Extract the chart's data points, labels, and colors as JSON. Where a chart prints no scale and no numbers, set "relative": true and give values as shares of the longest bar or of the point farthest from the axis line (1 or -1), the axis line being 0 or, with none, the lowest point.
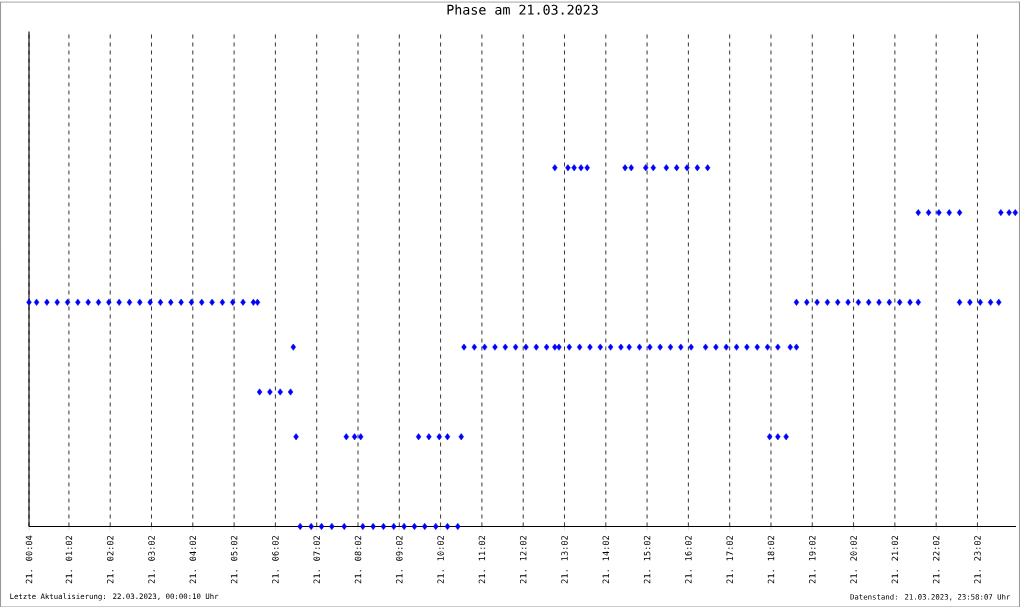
{
  "chart_data": {
    "type": "scatter",
    "title": "Phase am 21.03.2023",
    "relative": true,
    "marker": "diamond",
    "grid": "x",
    "xlim": [
      "2023-03-21T00:04",
      "2023-03-21T23:58"
    ],
    "xticks": [
      {
        "value": "2023-03-21T00:04",
        "label": "21. 00:04"
      },
      {
        "value": "2023-03-21T01:02",
        "label": "21. 01:02"
      },
      {
        "value": "2023-03-21T02:02",
        "label": "21. 02:02"
      },
      {
        "value": "2023-03-21T03:02",
        "label": "21. 03:02"
      },
      {
        "value": "2023-03-21T04:02",
        "label": "21. 04:02"
      },
      {
        "value": "2023-03-21T05:02",
        "label": "21. 05:02"
      },
      {
        "value": "2023-03-21T06:02",
        "label": "21. 06:02"
      },
      {
        "value": "2023-03-21T07:02",
        "label": "21. 07:02"
      },
      {
        "value": "2023-03-21T08:02",
        "label": "21. 08:02"
      },
      {
        "value": "2023-03-21T09:02",
        "label": "21. 09:02"
      },
      {
        "value": "2023-03-21T10:02",
        "label": "21. 10:02"
      },
      {
        "value": "2023-03-21T11:02",
        "label": "21. 11:02"
      },
      {
        "value": "2023-03-21T12:02",
        "label": "21. 12:02"
      },
      {
        "value": "2023-03-21T13:02",
        "label": "21. 13:02"
      },
      {
        "value": "2023-03-21T14:02",
        "label": "21. 14:02"
      },
      {
        "value": "2023-03-21T15:02",
        "label": "21. 15:02"
      },
      {
        "value": "2023-03-21T16:02",
        "label": "21. 16:02"
      },
      {
        "value": "2023-03-21T17:02",
        "label": "21. 17:02"
      },
      {
        "value": "2023-03-21T18:02",
        "label": "21. 18:02"
      },
      {
        "value": "2023-03-21T19:02",
        "label": "21. 19:02"
      },
      {
        "value": "2023-03-21T20:02",
        "label": "21. 20:02"
      },
      {
        "value": "2023-03-21T21:02",
        "label": "21. 21:02"
      },
      {
        "value": "2023-03-21T22:02",
        "label": "21. 22:02"
      },
      {
        "value": "2023-03-21T23:02",
        "label": "21. 23:02"
      }
    ],
    "series": [
      {
        "color": "#0000ff",
        "x": [
          "2023-03-21T00:04",
          "2023-03-21T00:15",
          "2023-03-21T00:30",
          "2023-03-21T00:45",
          "2023-03-21T01:00",
          "2023-03-21T01:15",
          "2023-03-21T01:30",
          "2023-03-21T01:45",
          "2023-03-21T02:00",
          "2023-03-21T02:15",
          "2023-03-21T02:30",
          "2023-03-21T02:45",
          "2023-03-21T03:00",
          "2023-03-21T03:15",
          "2023-03-21T03:30",
          "2023-03-21T03:45",
          "2023-03-21T04:00",
          "2023-03-21T04:15",
          "2023-03-21T04:30",
          "2023-03-21T04:45",
          "2023-03-21T05:00",
          "2023-03-21T05:15",
          "2023-03-21T05:30",
          "2023-03-21T05:36",
          "2023-03-21T05:39",
          "2023-03-21T05:54",
          "2023-03-21T06:09",
          "2023-03-21T06:24",
          "2023-03-21T06:28",
          "2023-03-21T06:32",
          "2023-03-21T06:38",
          "2023-03-21T06:54",
          "2023-03-21T07:09",
          "2023-03-21T07:24",
          "2023-03-21T07:42",
          "2023-03-21T07:45",
          "2023-03-21T07:57",
          "2023-03-21T08:06",
          "2023-03-21T08:09",
          "2023-03-21T08:24",
          "2023-03-21T08:39",
          "2023-03-21T08:54",
          "2023-03-21T09:09",
          "2023-03-21T09:24",
          "2023-03-21T09:39",
          "2023-03-21T09:30",
          "2023-03-21T09:45",
          "2023-03-21T10:00",
          "2023-03-21T10:12",
          "2023-03-21T09:55",
          "2023-03-21T10:12",
          "2023-03-21T10:27",
          "2023-03-21T10:32",
          "2023-03-21T10:36",
          "2023-03-21T10:51",
          "2023-03-21T11:06",
          "2023-03-21T11:21",
          "2023-03-21T11:36",
          "2023-03-21T11:51",
          "2023-03-21T12:06",
          "2023-03-21T12:21",
          "2023-03-21T12:36",
          "2023-03-21T12:48",
          "2023-03-21T12:54",
          "2023-03-21T13:09",
          "2023-03-21T13:24",
          "2023-03-21T13:39",
          "2023-03-21T13:54",
          "2023-03-21T14:09",
          "2023-03-21T14:24",
          "2023-03-21T14:36",
          "2023-03-21T14:51",
          "2023-03-21T15:06",
          "2023-03-21T15:21",
          "2023-03-21T15:36",
          "2023-03-21T15:51",
          "2023-03-21T16:06",
          "2023-03-21T16:27",
          "2023-03-21T16:42",
          "2023-03-21T16:57",
          "2023-03-21T17:12",
          "2023-03-21T17:27",
          "2023-03-21T17:42",
          "2023-03-21T17:57",
          "2023-03-21T18:12",
          "2023-03-21T18:30",
          "2023-03-21T18:39",
          "2023-03-21T12:48",
          "2023-03-21T13:07",
          "2023-03-21T13:16",
          "2023-03-21T13:26",
          "2023-03-21T13:35",
          "2023-03-21T14:30",
          "2023-03-21T14:39",
          "2023-03-21T15:00",
          "2023-03-21T15:11",
          "2023-03-21T15:30",
          "2023-03-21T15:45",
          "2023-03-21T16:00",
          "2023-03-21T16:15",
          "2023-03-21T16:30",
          "2023-03-21T18:00",
          "2023-03-21T18:12",
          "2023-03-21T18:24",
          "2023-03-21T18:39",
          "2023-03-21T18:54",
          "2023-03-21T19:09",
          "2023-03-21T19:24",
          "2023-03-21T19:39",
          "2023-03-21T19:54",
          "2023-03-21T20:09",
          "2023-03-21T20:24",
          "2023-03-21T20:39",
          "2023-03-21T20:54",
          "2023-03-21T21:09",
          "2023-03-21T21:24",
          "2023-03-21T21:36",
          "2023-03-21T22:36",
          "2023-03-21T22:51",
          "2023-03-21T23:06",
          "2023-03-21T23:21",
          "2023-03-21T23:33",
          "2023-03-21T21:36",
          "2023-03-21T21:51",
          "2023-03-21T22:06",
          "2023-03-21T22:21",
          "2023-03-21T22:36",
          "2023-03-21T23:36",
          "2023-03-21T23:48",
          "2023-03-21T23:57"
        ],
        "values": [
          0.625,
          0.625,
          0.625,
          0.625,
          0.625,
          0.625,
          0.625,
          0.625,
          0.625,
          0.625,
          0.625,
          0.625,
          0.625,
          0.625,
          0.625,
          0.625,
          0.625,
          0.625,
          0.625,
          0.625,
          0.625,
          0.625,
          0.625,
          0.625,
          0.375,
          0.375,
          0.375,
          0.375,
          0.5,
          0.25,
          0,
          0,
          0,
          0,
          0,
          0.25,
          0.25,
          0.25,
          0,
          0,
          0,
          0,
          0,
          0,
          0,
          0.25,
          0.25,
          0.25,
          0.25,
          0,
          0,
          0,
          0.25,
          0.5,
          0.5,
          0.5,
          0.5,
          0.5,
          0.5,
          0.5,
          0.5,
          0.5,
          0.5,
          0.5,
          0.5,
          0.5,
          0.5,
          0.5,
          0.5,
          0.5,
          0.5,
          0.5,
          0.5,
          0.5,
          0.5,
          0.5,
          0.5,
          0.5,
          0.5,
          0.5,
          0.5,
          0.5,
          0.5,
          0.5,
          0.5,
          0.5,
          0.5,
          1,
          1,
          1,
          1,
          1,
          1,
          1,
          1,
          1,
          1,
          1,
          1,
          1,
          1,
          0.25,
          0.25,
          0.25,
          0.625,
          0.625,
          0.625,
          0.625,
          0.625,
          0.625,
          0.625,
          0.625,
          0.625,
          0.625,
          0.625,
          0.625,
          0.625,
          0.625,
          0.625,
          0.625,
          0.625,
          0.625,
          0.875,
          0.875,
          0.875,
          0.875,
          0.875,
          0.875,
          0.875,
          0.875
        ]
      }
    ],
    "annotations": [
      "Letzte Aktualisierung: 22.03.2023, 00:00:10 Uhr",
      "Datenstand: 21.03.2023, 23:58:07 Uhr"
    ]
  }
}
